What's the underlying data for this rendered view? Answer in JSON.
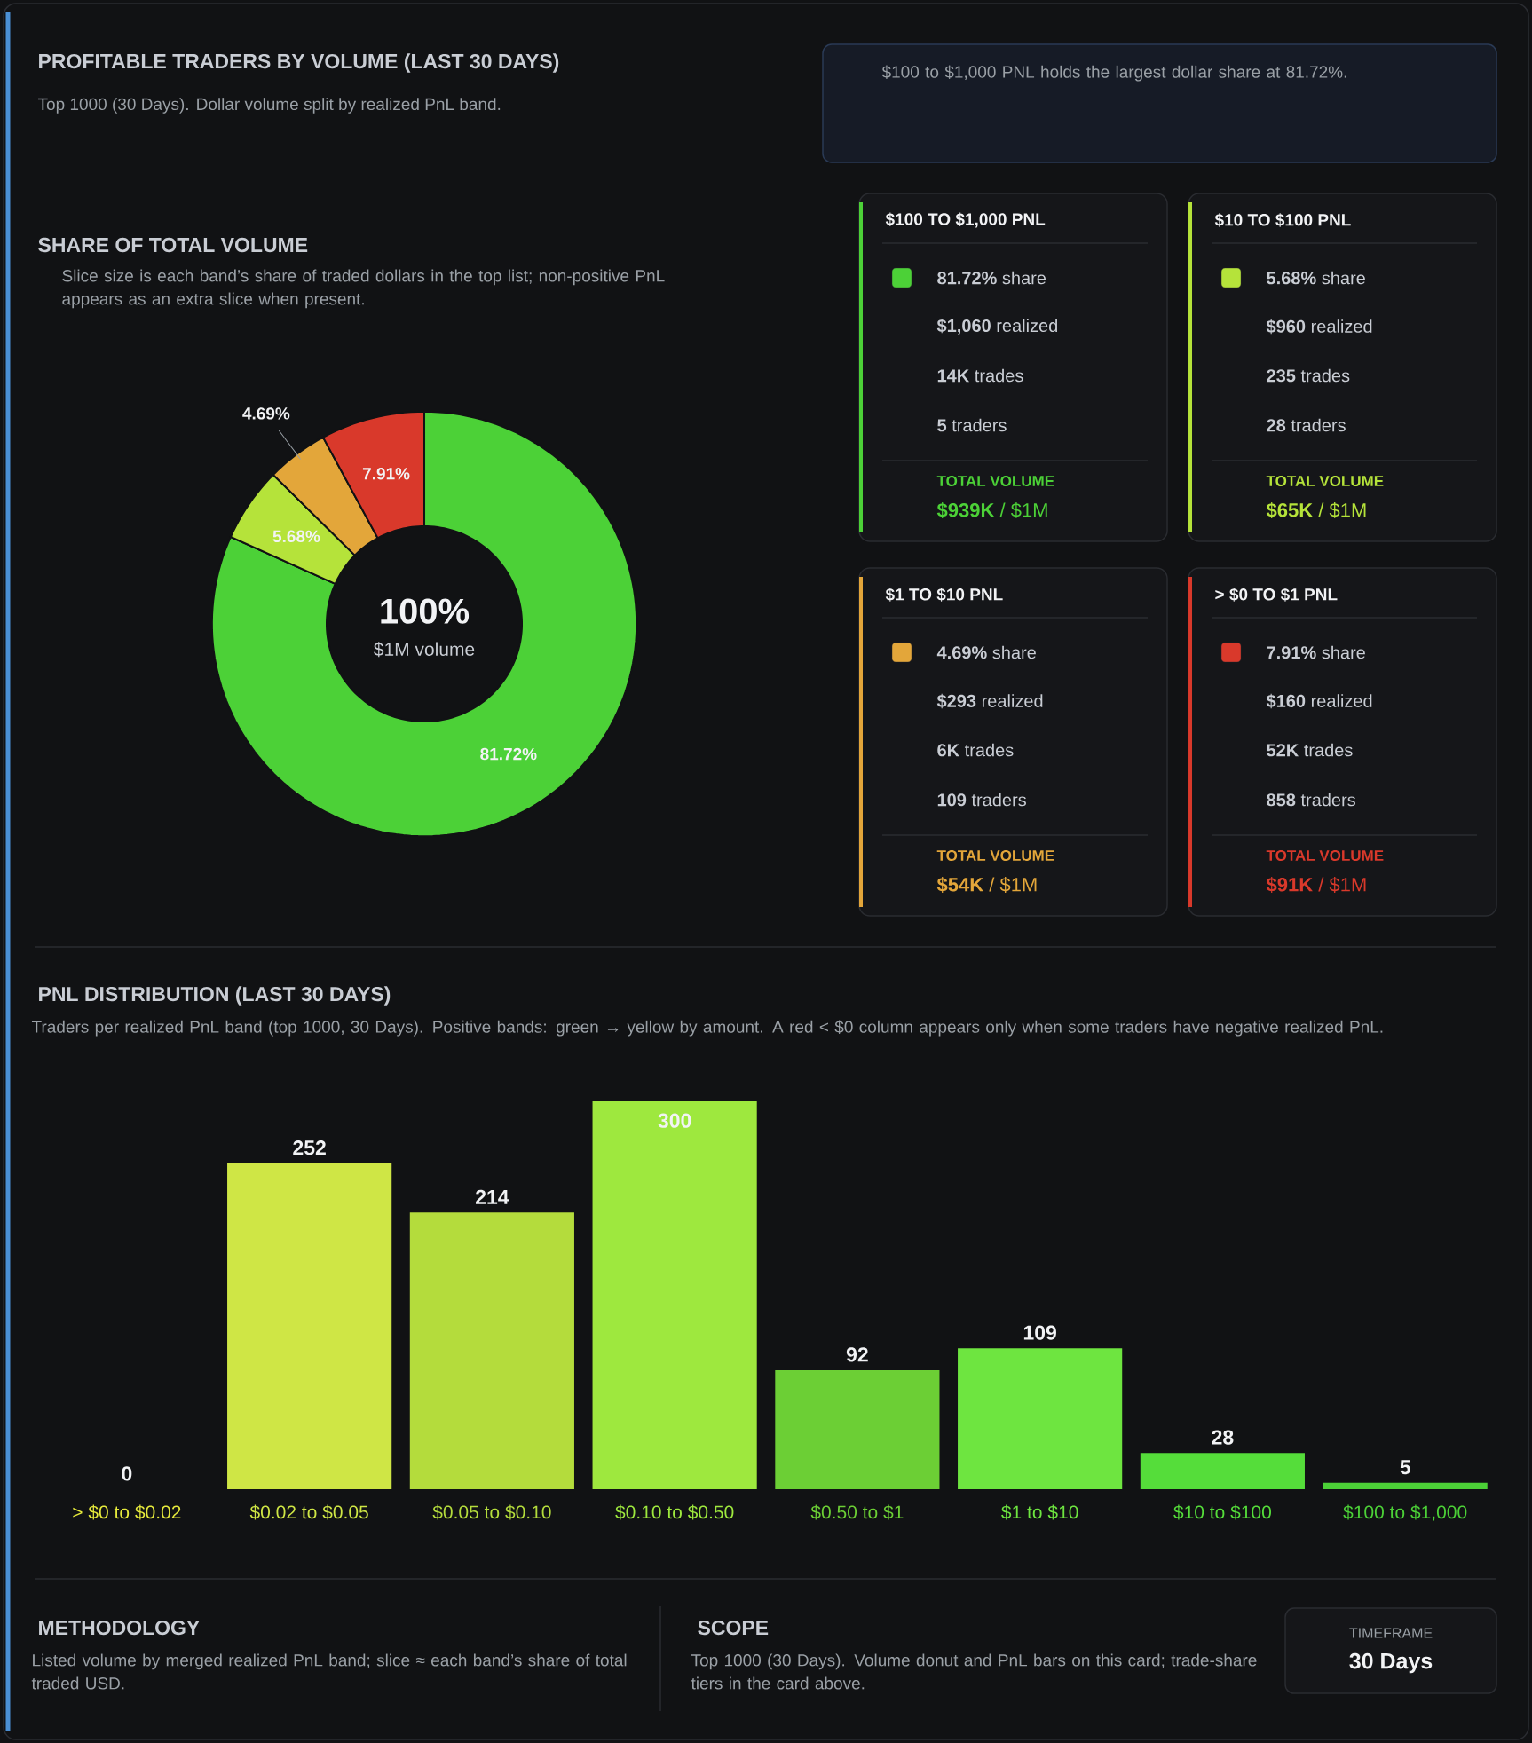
{
  "chart_data": [
    {
      "type": "other",
      "title": "PROFITABLE TRADERS BY VOLUME (LAST 30 DAYS)",
      "subtitle": "Top 1000 (30 Days). Dollar volume split by realized PnL band.",
      "annotations": [
        "$100 to $1,000 PNL holds the largest dollar share at 81.72%.",
        "**81.72%** share",
        "**$1,060** realized",
        "**14K** trades",
        "**5** traders",
        "TOTAL VOLUME",
        "**$939K** / $1M",
        "**5.68%** share",
        "**$960** realized",
        "**235** trades",
        "**28** traders",
        "TOTAL VOLUME",
        "**$65K** / $1M",
        "**4.69%** share",
        "**$293** realized",
        "**6K** trades",
        "**109** traders",
        "TOTAL VOLUME",
        "**$54K** / $1M",
        "**7.91%** share",
        "**$160** realized",
        "**52K** trades",
        "**858** traders",
        "TOTAL VOLUME",
        "**$91K** / $1M"
      ]
    },
    {
      "type": "donut",
      "title": "SHARE OF TOTAL VOLUME",
      "subtitle": "Slice size is each band’s share of traded dollars in the top list; non-positive PnL appears as an extra slice when present.",
      "categories": [
        "$100 TO $1,000 PNL",
        "$10 TO $100 PNL",
        "$1 TO $10 PNL",
        "> $0 TO $1 PNL"
      ],
      "values": [
        81.72,
        5.68,
        4.69,
        7.91
      ],
      "colors": [
        "#4cd137",
        "#b5e33a",
        "#e3a63a",
        "#d9392b"
      ],
      "value_labels": [
        "81.72%",
        "5.68%",
        "4.69%",
        "7.91%"
      ],
      "annotations": [
        "100%",
        "$1M volume"
      ]
    },
    {
      "type": "bar",
      "title": "PNL DISTRIBUTION (LAST 30 DAYS)",
      "subtitle": "Traders per realized PnL band (top 1000, 30 Days). Positive bands: green → yellow by amount. A red < $0 column appears only when some traders have negative realized PnL.",
      "categories": [
        "> $0 to $0.02",
        "$0.02 to $0.05",
        "$0.05 to $0.10",
        "$0.10 to $0.50",
        "$0.50 to $1",
        "$1 to $10",
        "$10 to $100",
        "$100 to $1,000"
      ],
      "values": [
        0,
        252,
        214,
        300,
        92,
        109,
        28,
        5
      ],
      "colors": [
        "#e6ea3c",
        "#cfe645",
        "#b4dc3c",
        "#9ee83e",
        "#6ccf35",
        "#6ee540",
        "#55dd3a",
        "#4cd137"
      ],
      "ylim": [
        0,
        300
      ],
      "tick_labels": false,
      "data_labels": true
    },
    {
      "type": "other",
      "annotations": [
        "METHODOLOGY",
        "Listed volume by merged realized PnL band; slice ≈ each band’s share of total traded USD.",
        "SCOPE",
        "Top 1000 (30 Days). Volume donut and PnL bars on this card; trade-share tiers in the card above.",
        "TIMEFRAME",
        "30 Days"
      ]
    }
  ]
}
